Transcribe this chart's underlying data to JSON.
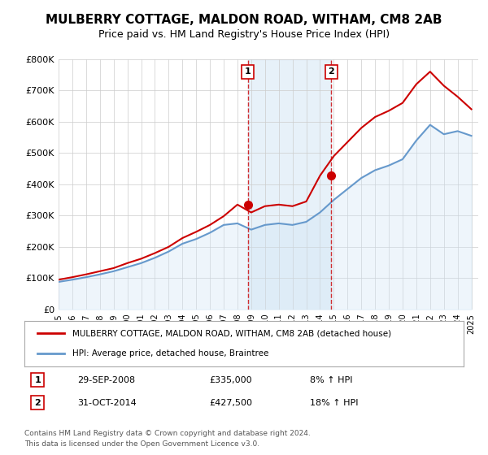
{
  "title": "MULBERRY COTTAGE, MALDON ROAD, WITHAM, CM8 2AB",
  "subtitle": "Price paid vs. HM Land Registry's House Price Index (HPI)",
  "title_fontsize": 11,
  "subtitle_fontsize": 9,
  "ylim": [
    0,
    800000
  ],
  "yticks": [
    0,
    100000,
    200000,
    300000,
    400000,
    500000,
    600000,
    700000,
    800000
  ],
  "ytick_labels": [
    "£0",
    "£100K",
    "£200K",
    "£300K",
    "£400K",
    "£500K",
    "£600K",
    "£700K",
    "£800K"
  ],
  "xlim_start": 1995.0,
  "xlim_end": 2025.5,
  "transaction1": {
    "year": 2008.75,
    "price": 335000,
    "label": "1",
    "date": "29-SEP-2008",
    "amount": "£335,000",
    "hpi": "8% ↑ HPI"
  },
  "transaction2": {
    "year": 2014.83,
    "price": 427500,
    "label": "2",
    "date": "31-OCT-2014",
    "amount": "£427,500",
    "hpi": "18% ↑ HPI"
  },
  "red_line_color": "#cc0000",
  "blue_line_color": "#6699cc",
  "blue_fill_color": "#d0e4f5",
  "dashed_color": "#cc0000",
  "legend_label_red": "MULBERRY COTTAGE, MALDON ROAD, WITHAM, CM8 2AB (detached house)",
  "legend_label_blue": "HPI: Average price, detached house, Braintree",
  "footer1": "Contains HM Land Registry data © Crown copyright and database right 2024.",
  "footer2": "This data is licensed under the Open Government Licence v3.0.",
  "background_color": "#ffffff",
  "plot_bg_color": "#ffffff",
  "grid_color": "#cccccc",
  "hpi_years": [
    1995,
    1996,
    1997,
    1998,
    1999,
    2000,
    2001,
    2002,
    2003,
    2004,
    2005,
    2006,
    2007,
    2008,
    2009,
    2010,
    2011,
    2012,
    2013,
    2014,
    2015,
    2016,
    2017,
    2018,
    2019,
    2020,
    2021,
    2022,
    2023,
    2024,
    2025
  ],
  "hpi_values": [
    88000,
    95000,
    103000,
    112000,
    122000,
    135000,
    148000,
    165000,
    185000,
    210000,
    225000,
    245000,
    270000,
    275000,
    255000,
    270000,
    275000,
    270000,
    280000,
    310000,
    350000,
    385000,
    420000,
    445000,
    460000,
    480000,
    540000,
    590000,
    560000,
    570000,
    555000
  ],
  "red_years": [
    1995,
    1996,
    1997,
    1998,
    1999,
    2000,
    2001,
    2002,
    2003,
    2004,
    2005,
    2006,
    2007,
    2008,
    2009,
    2010,
    2011,
    2012,
    2013,
    2014,
    2015,
    2016,
    2017,
    2018,
    2019,
    2020,
    2021,
    2022,
    2023,
    2024,
    2025
  ],
  "red_values": [
    95000,
    103000,
    112000,
    122000,
    132000,
    148000,
    162000,
    180000,
    200000,
    228000,
    248000,
    270000,
    298000,
    335000,
    310000,
    330000,
    335000,
    330000,
    345000,
    427500,
    490000,
    535000,
    580000,
    615000,
    635000,
    660000,
    720000,
    760000,
    715000,
    680000,
    640000
  ]
}
